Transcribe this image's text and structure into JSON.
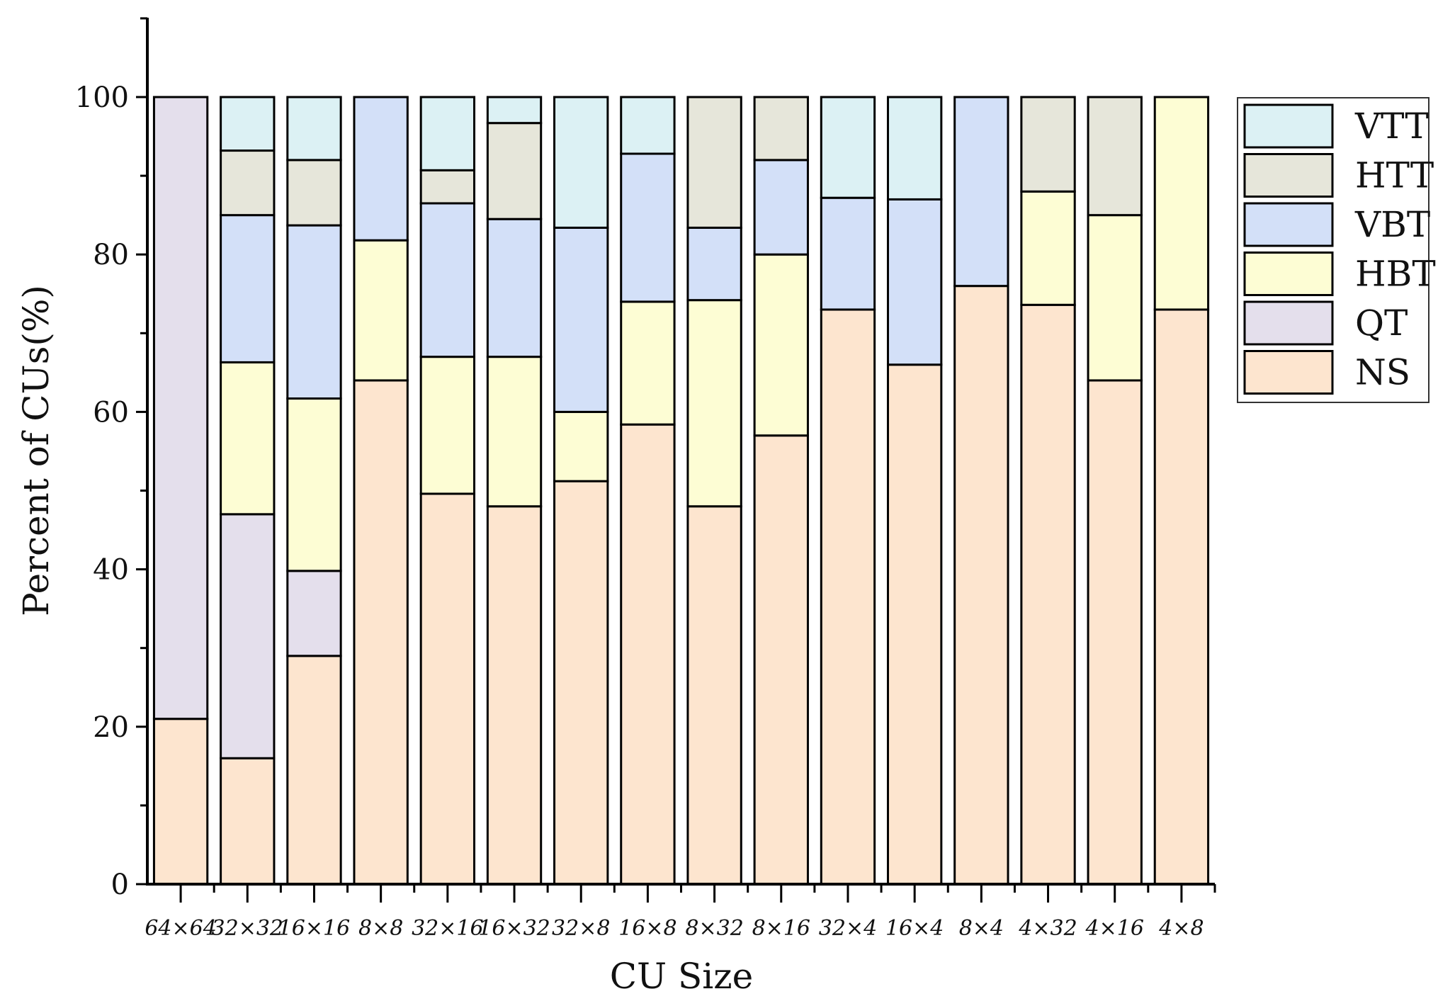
{
  "chart_data": {
    "type": "bar",
    "stacked": true,
    "title": "",
    "xlabel": "CU Size",
    "ylabel": "Percent of CUs(%)",
    "ylim": [
      0,
      110
    ],
    "yticks": [
      0,
      20,
      40,
      60,
      80,
      100
    ],
    "grid": false,
    "legend_position": "top-right",
    "categories": [
      "64×64",
      "32×32",
      "16×16",
      "8×8",
      "32×16",
      "16×32",
      "32×8",
      "16×8",
      "8×32",
      "8×16",
      "32×4",
      "16×4",
      "8×4",
      "4×32",
      "4×16",
      "4×8"
    ],
    "series": [
      {
        "name": "NS",
        "color": "#fde5cf",
        "values": [
          21,
          16,
          29,
          64,
          49.6,
          48,
          51.2,
          58.4,
          48,
          57,
          73,
          66,
          76,
          73.6,
          64,
          73
        ]
      },
      {
        "name": "QT",
        "color": "#e4dfec",
        "values": [
          79,
          31,
          10.8,
          0,
          0,
          0,
          0,
          0,
          0,
          0,
          0,
          0,
          0,
          0,
          0,
          0
        ]
      },
      {
        "name": "HBT",
        "color": "#fdfdd4",
        "values": [
          0,
          19.3,
          21.9,
          17.8,
          17.4,
          19,
          8.8,
          15.6,
          26.2,
          23,
          0,
          0,
          0,
          14.4,
          21,
          27
        ]
      },
      {
        "name": "VBT",
        "color": "#d3e0f8",
        "values": [
          0,
          18.7,
          22,
          18.2,
          19.5,
          17.5,
          23.4,
          18.8,
          9.2,
          12,
          14.2,
          21,
          24,
          0,
          0,
          0
        ]
      },
      {
        "name": "HTT",
        "color": "#e6e6da",
        "values": [
          0,
          8.2,
          8.3,
          0,
          4.2,
          12.2,
          0,
          0,
          16.6,
          8,
          0,
          0,
          0,
          12,
          15,
          0
        ]
      },
      {
        "name": "VTT",
        "color": "#dcf1f4",
        "values": [
          0,
          6.8,
          8,
          0,
          9.3,
          3.3,
          16.6,
          7.2,
          0,
          0,
          12.8,
          13,
          0,
          0,
          0,
          0
        ]
      }
    ]
  }
}
